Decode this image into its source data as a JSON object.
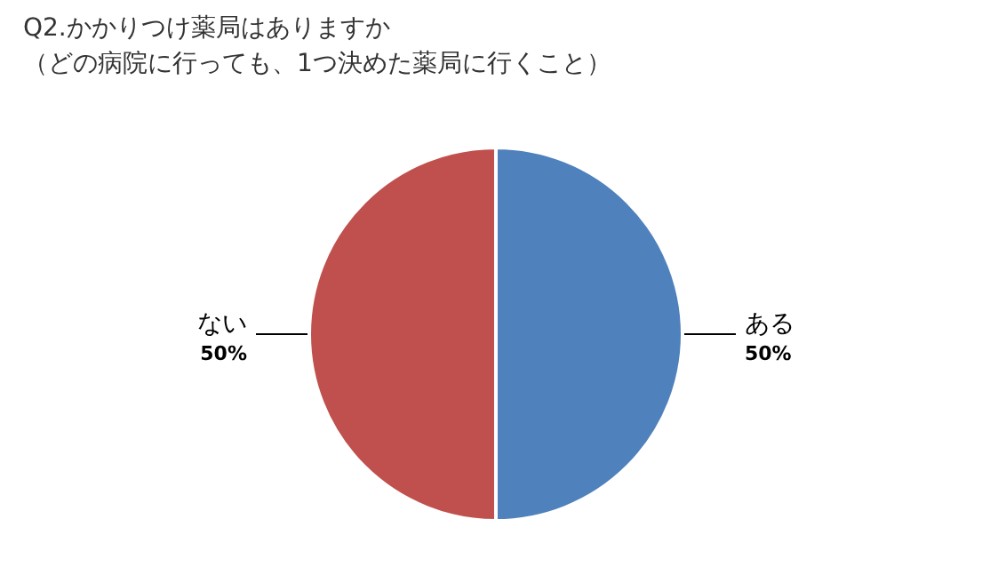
{
  "chart_data": {
    "type": "pie",
    "title": "Q2.かかりつけ薬局はありますか",
    "subtitle": "（どの病院に行っても、1つ決めた薬局に行くこと）",
    "categories": [
      "ある",
      "ない"
    ],
    "values": [
      50,
      50
    ],
    "colors": [
      "#4f81bd",
      "#c0504d"
    ],
    "value_labels": [
      "50%",
      "50%"
    ],
    "legend": false
  }
}
